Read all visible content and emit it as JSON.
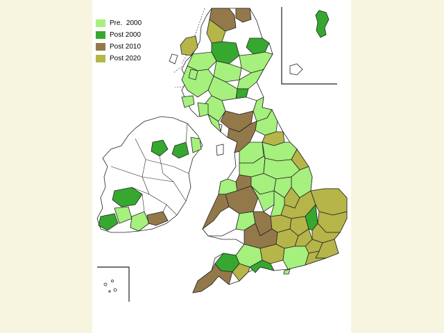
{
  "legend": {
    "items": [
      {
        "label": "Pre.  2000",
        "color": "#a6f07e",
        "category": "pre2000"
      },
      {
        "label": "Post 2000",
        "color": "#36a82f",
        "category": "post2000"
      },
      {
        "label": "Post 2010",
        "color": "#93794a",
        "category": "post2010"
      },
      {
        "label": "Post 2020",
        "color": "#b5b54a",
        "category": "post2020"
      }
    ]
  },
  "colors": {
    "background": "#f7f4e0",
    "panel": "#ffffff",
    "unclassified": "#ffffff",
    "border": "#222222"
  }
}
